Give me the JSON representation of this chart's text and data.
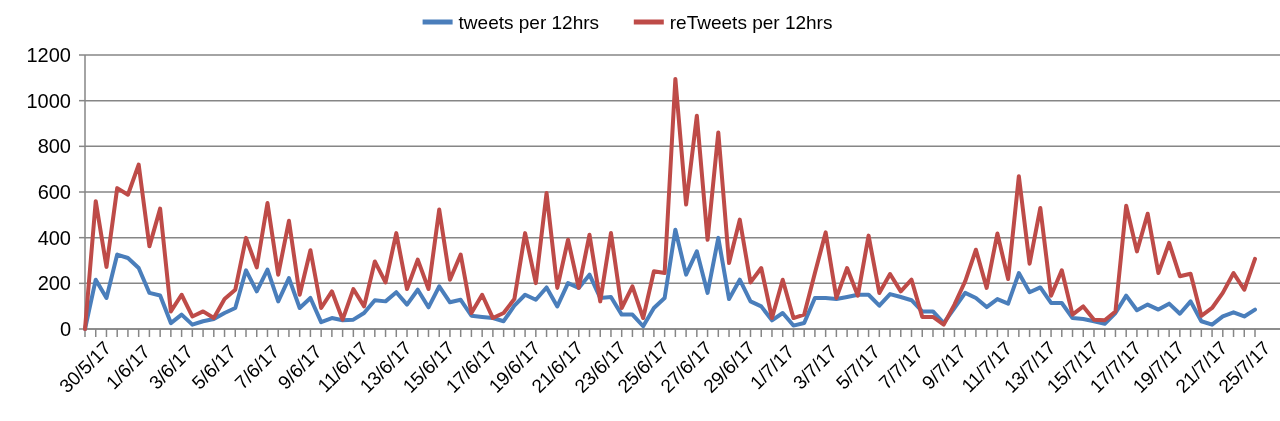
{
  "chart_data": {
    "type": "line",
    "categories": [
      "30/5/17",
      null,
      null,
      null,
      "1/6/17",
      null,
      null,
      null,
      "3/6/17",
      null,
      null,
      null,
      "5/6/17",
      null,
      null,
      null,
      "7/6/17",
      null,
      null,
      null,
      "9/6/17",
      null,
      null,
      null,
      "11/6/17",
      null,
      null,
      null,
      "13/6/17",
      null,
      null,
      null,
      "15/6/17",
      null,
      null,
      null,
      "17/6/17",
      null,
      null,
      null,
      "19/6/17",
      null,
      null,
      null,
      "21/6/17",
      null,
      null,
      null,
      "23/6/17",
      null,
      null,
      null,
      "25/6/17",
      null,
      null,
      null,
      "27/6/17",
      null,
      null,
      null,
      "29/6/17",
      null,
      null,
      null,
      "1/7/17",
      null,
      null,
      null,
      "3/7/17",
      null,
      null,
      null,
      "5/7/17",
      null,
      null,
      null,
      "7/7/17",
      null,
      null,
      null,
      "9/7/17",
      null,
      null,
      null,
      "11/7/17",
      null,
      null,
      null,
      "13/7/17",
      null,
      null,
      null,
      "15/7/17",
      null,
      null,
      null,
      "17/7/17",
      null,
      null,
      null,
      "19/7/17",
      null,
      null,
      null,
      "21/7/17",
      null,
      null,
      null,
      "25/7/17",
      null
    ],
    "series": [
      {
        "name": "tweets per 12hrs",
        "color": "#4a7ebb",
        "values": [
          0,
          216,
          136,
          326,
          311,
          267,
          158,
          147,
          26,
          63,
          19,
          34,
          44,
          70,
          92,
          257,
          165,
          260,
          121,
          223,
          92,
          136,
          30,
          48,
          38,
          41,
          70,
          126,
          121,
          161,
          107,
          172,
          95,
          187,
          117,
          128,
          58,
          53,
          48,
          34,
          102,
          150,
          128,
          182,
          99,
          201,
          180,
          238,
          136,
          140,
          63,
          63,
          12,
          92,
          136,
          435,
          238,
          340,
          158,
          399,
          131,
          216,
          121,
          99,
          38,
          70,
          15,
          26,
          136,
          136,
          131,
          140,
          150,
          150,
          102,
          153,
          140,
          126,
          77,
          77,
          26,
          92,
          158,
          136,
          96,
          131,
          111,
          245,
          161,
          182,
          114,
          114,
          48,
          44,
          34,
          23,
          70,
          146,
          82,
          107,
          85,
          111,
          67,
          121,
          34,
          19,
          55,
          73,
          55,
          85
        ]
      },
      {
        "name": "reTweets per 12hrs",
        "color": "#be4b48",
        "values": [
          0,
          560,
          272,
          617,
          588,
          720,
          362,
          527,
          77,
          150,
          55,
          77,
          48,
          131,
          172,
          399,
          270,
          552,
          238,
          474,
          150,
          345,
          92,
          165,
          41,
          175,
          99,
          296,
          204,
          420,
          175,
          304,
          175,
          523,
          216,
          326,
          70,
          150,
          48,
          70,
          131,
          420,
          201,
          596,
          180,
          391,
          180,
          413,
          121,
          420,
          92,
          187,
          48,
          253,
          245,
          1095,
          545,
          934,
          391,
          861,
          289,
          479,
          204,
          267,
          48,
          216,
          48,
          63,
          245,
          423,
          136,
          267,
          146,
          409,
          158,
          241,
          165,
          216,
          53,
          53,
          19,
          107,
          209,
          347,
          180,
          418,
          219,
          669,
          286,
          530,
          146,
          257,
          63,
          99,
          41,
          38,
          77,
          540,
          340,
          505,
          245,
          377,
          231,
          242,
          58,
          92,
          158,
          245,
          172,
          307
        ]
      }
    ],
    "ylim": [
      0,
      1200
    ],
    "yticks": [
      0,
      200,
      400,
      600,
      800,
      1000,
      1200
    ],
    "grid": "y",
    "legend": "top"
  }
}
